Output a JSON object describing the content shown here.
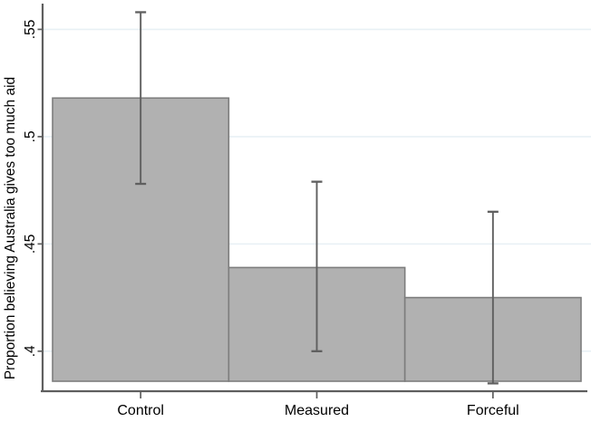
{
  "chart_data": {
    "type": "bar",
    "title": "",
    "categories": [
      "Control",
      "Measured",
      "Forceful"
    ],
    "values": [
      0.518,
      0.439,
      0.425
    ],
    "error_low": [
      0.478,
      0.4,
      0.385
    ],
    "error_high": [
      0.558,
      0.479,
      0.465
    ],
    "xlabel": "",
    "ylabel": "Proportion believing Australia gives too much aid",
    "yticks": [
      0.4,
      0.45,
      0.5,
      0.55
    ],
    "ytick_labels": [
      ".4",
      ".45",
      ".5",
      ".55"
    ],
    "ylim": [
      0.386,
      0.562
    ],
    "grid": true,
    "legend": false,
    "bar_gap": 0
  },
  "colors": {
    "background": "#ffffff",
    "bar_fill": "#b1b1b1",
    "bar_border": "#7d7d7d",
    "error_bar": "#5f5f5f",
    "axis_line": "#5f5f5f",
    "gridline": "#e8f0f5",
    "text": "#000000"
  }
}
